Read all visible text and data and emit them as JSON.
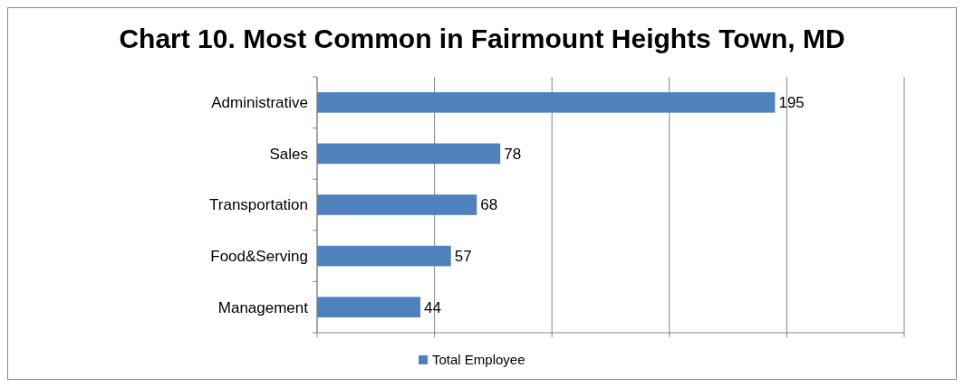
{
  "chart_data": {
    "type": "bar",
    "orientation": "horizontal",
    "title": "Chart 10. Most Common in Fairmount Heights Town, MD",
    "categories": [
      "Administrative",
      "Sales",
      "Transportation",
      "Food&Serving",
      "Management"
    ],
    "series": [
      {
        "name": "Total Employee",
        "color": "#4f81bd",
        "values": [
          195,
          78,
          68,
          57,
          44
        ]
      }
    ],
    "xlim": [
      0,
      250
    ],
    "xticks": [
      {
        "value": 0,
        "label": null
      },
      {
        "value": 50,
        "label": null
      },
      {
        "value": 100,
        "label": null
      },
      {
        "value": 150,
        "label": null
      },
      {
        "value": 200,
        "label": null
      },
      {
        "value": 250,
        "label": null
      }
    ],
    "tick_labels": "y",
    "grid": "x",
    "legend": "bottom",
    "data_labels": true
  }
}
